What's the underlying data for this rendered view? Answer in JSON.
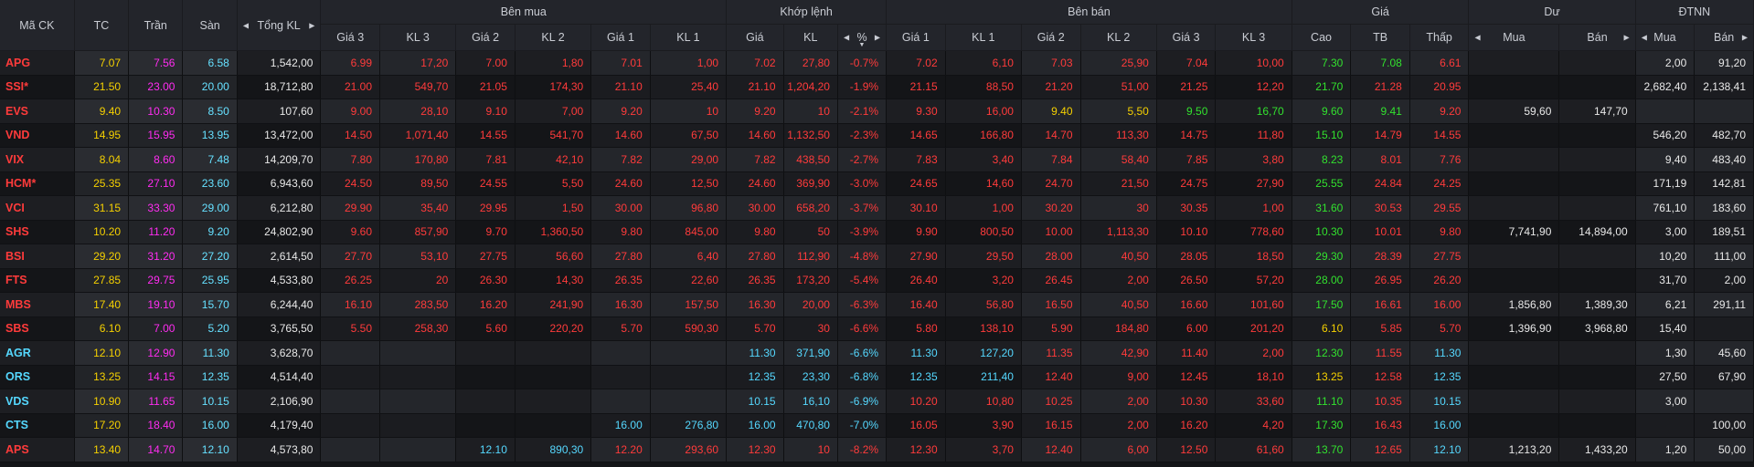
{
  "colors": {
    "down": "#ff3b3b",
    "ref": "#f5d000",
    "ceil": "#ff2cf1",
    "floor": "#55d8ff",
    "up": "#32e12e",
    "neutral": "#e8e8e8"
  },
  "headers": {
    "ma_ck": "Mã CK",
    "tc": "TC",
    "tran": "Trần",
    "san": "Sàn",
    "tong_kl": "Tổng KL",
    "ben_mua": "Bên mua",
    "khop_lenh": "Khớp lệnh",
    "ben_ban": "Bên bán",
    "gia": "Giá",
    "du": "Dư",
    "dtnn": "ĐTNN",
    "gia3": "Giá 3",
    "kl3": "KL 3",
    "gia2": "Giá 2",
    "kl2": "KL 2",
    "gia1": "Giá 1",
    "kl1": "KL 1",
    "kl_gia": "Giá",
    "kl_kl": "KL",
    "kl_pct": "%",
    "cao": "Cao",
    "tb": "TB",
    "thap": "Thấp",
    "mua": "Mua",
    "ban": "Bán"
  },
  "rows": [
    {
      "sym": "APG",
      "tc": "7.07",
      "tran": "7.56",
      "san": "6.58",
      "tkl": "1,542,00",
      "bg3": "6.99",
      "bk3": "17,20",
      "bg2": "7.00",
      "bk2": "1,80",
      "bg1": "7.01",
      "bk1": "1,00",
      "mg": "7.02",
      "mk": "27,80",
      "mp": "-0.7%",
      "sg1": "7.02",
      "sk1": "6,10",
      "sg2": "7.03",
      "sk2": "25,90",
      "sg3": "7.04",
      "sk3": "10,00",
      "cao": "7.30",
      "tb": "7.08",
      "thap": "6.61",
      "dm": "",
      "db": "",
      "nm": "2,00",
      "nb": "91,20",
      "c": {
        "sym": "cr",
        "bg3": "cr",
        "bk3": "cr",
        "bg2": "cr",
        "bk2": "cr",
        "bg1": "cr",
        "bk1": "cr",
        "mg": "cr",
        "mk": "cr",
        "mp": "cr",
        "sg1": "cr",
        "sk1": "cr",
        "sg2": "cr",
        "sk2": "cr",
        "sg3": "cr",
        "sk3": "cr",
        "cao": "cg",
        "tb": "cg",
        "thap": "cr"
      }
    },
    {
      "sym": "SSI*",
      "tc": "21.50",
      "tran": "23.00",
      "san": "20.00",
      "tkl": "18,712,80",
      "bg3": "21.00",
      "bk3": "549,70",
      "bg2": "21.05",
      "bk2": "174,30",
      "bg1": "21.10",
      "bk1": "25,40",
      "mg": "21.10",
      "mk": "1,204,20",
      "mp": "-1.9%",
      "sg1": "21.15",
      "sk1": "88,50",
      "sg2": "21.20",
      "sk2": "51,00",
      "sg3": "21.25",
      "sk3": "12,20",
      "cao": "21.70",
      "tb": "21.28",
      "thap": "20.95",
      "dm": "",
      "db": "",
      "nm": "2,682,40",
      "nb": "2,138,41",
      "c": {
        "sym": "cr",
        "bg3": "cr",
        "bk3": "cr",
        "bg2": "cr",
        "bk2": "cr",
        "bg1": "cr",
        "bk1": "cr",
        "mg": "cr",
        "mk": "cr",
        "mp": "cr",
        "sg1": "cr",
        "sk1": "cr",
        "sg2": "cr",
        "sk2": "cr",
        "sg3": "cr",
        "sk3": "cr",
        "cao": "cg",
        "tb": "cr",
        "thap": "cr"
      }
    },
    {
      "sym": "EVS",
      "tc": "9.40",
      "tran": "10.30",
      "san": "8.50",
      "tkl": "107,60",
      "bg3": "9.00",
      "bk3": "28,10",
      "bg2": "9.10",
      "bk2": "7,00",
      "bg1": "9.20",
      "bk1": "10",
      "mg": "9.20",
      "mk": "10",
      "mp": "-2.1%",
      "sg1": "9.30",
      "sk1": "16,00",
      "sg2": "9.40",
      "sk2": "5,50",
      "sg3": "9.50",
      "sk3": "16,70",
      "cao": "9.60",
      "tb": "9.41",
      "thap": "9.20",
      "dm": "59,60",
      "db": "147,70",
      "nm": "",
      "nb": "",
      "c": {
        "sym": "cr",
        "bg3": "cr",
        "bk3": "cr",
        "bg2": "cr",
        "bk2": "cr",
        "bg1": "cr",
        "bk1": "cr",
        "mg": "cr",
        "mk": "cr",
        "mp": "cr",
        "sg1": "cr",
        "sk1": "cr",
        "sg2": "cy",
        "sk2": "cy",
        "sg3": "cg",
        "sk3": "cg",
        "cao": "cg",
        "tb": "cg",
        "thap": "cr"
      }
    },
    {
      "sym": "VND",
      "tc": "14.95",
      "tran": "15.95",
      "san": "13.95",
      "tkl": "13,472,00",
      "bg3": "14.50",
      "bk3": "1,071,40",
      "bg2": "14.55",
      "bk2": "541,70",
      "bg1": "14.60",
      "bk1": "67,50",
      "mg": "14.60",
      "mk": "1,132,50",
      "mp": "-2.3%",
      "sg1": "14.65",
      "sk1": "166,80",
      "sg2": "14.70",
      "sk2": "113,30",
      "sg3": "14.75",
      "sk3": "11,80",
      "cao": "15.10",
      "tb": "14.79",
      "thap": "14.55",
      "dm": "",
      "db": "",
      "nm": "546,20",
      "nb": "482,70",
      "c": {
        "sym": "cr",
        "bg3": "cr",
        "bk3": "cr",
        "bg2": "cr",
        "bk2": "cr",
        "bg1": "cr",
        "bk1": "cr",
        "mg": "cr",
        "mk": "cr",
        "mp": "cr",
        "sg1": "cr",
        "sk1": "cr",
        "sg2": "cr",
        "sk2": "cr",
        "sg3": "cr",
        "sk3": "cr",
        "cao": "cg",
        "tb": "cr",
        "thap": "cr"
      }
    },
    {
      "sym": "VIX",
      "tc": "8.04",
      "tran": "8.60",
      "san": "7.48",
      "tkl": "14,209,70",
      "bg3": "7.80",
      "bk3": "170,80",
      "bg2": "7.81",
      "bk2": "42,10",
      "bg1": "7.82",
      "bk1": "29,00",
      "mg": "7.82",
      "mk": "438,50",
      "mp": "-2.7%",
      "sg1": "7.83",
      "sk1": "3,40",
      "sg2": "7.84",
      "sk2": "58,40",
      "sg3": "7.85",
      "sk3": "3,80",
      "cao": "8.23",
      "tb": "8.01",
      "thap": "7.76",
      "dm": "",
      "db": "",
      "nm": "9,40",
      "nb": "483,40",
      "c": {
        "sym": "cr",
        "bg3": "cr",
        "bk3": "cr",
        "bg2": "cr",
        "bk2": "cr",
        "bg1": "cr",
        "bk1": "cr",
        "mg": "cr",
        "mk": "cr",
        "mp": "cr",
        "sg1": "cr",
        "sk1": "cr",
        "sg2": "cr",
        "sk2": "cr",
        "sg3": "cr",
        "sk3": "cr",
        "cao": "cg",
        "tb": "cr",
        "thap": "cr"
      }
    },
    {
      "sym": "HCM*",
      "tc": "25.35",
      "tran": "27.10",
      "san": "23.60",
      "tkl": "6,943,60",
      "bg3": "24.50",
      "bk3": "89,50",
      "bg2": "24.55",
      "bk2": "5,50",
      "bg1": "24.60",
      "bk1": "12,50",
      "mg": "24.60",
      "mk": "369,90",
      "mp": "-3.0%",
      "sg1": "24.65",
      "sk1": "14,60",
      "sg2": "24.70",
      "sk2": "21,50",
      "sg3": "24.75",
      "sk3": "27,90",
      "cao": "25.55",
      "tb": "24.84",
      "thap": "24.25",
      "dm": "",
      "db": "",
      "nm": "171,19",
      "nb": "142,81",
      "c": {
        "sym": "cr",
        "bg3": "cr",
        "bk3": "cr",
        "bg2": "cr",
        "bk2": "cr",
        "bg1": "cr",
        "bk1": "cr",
        "mg": "cr",
        "mk": "cr",
        "mp": "cr",
        "sg1": "cr",
        "sk1": "cr",
        "sg2": "cr",
        "sk2": "cr",
        "sg3": "cr",
        "sk3": "cr",
        "cao": "cg",
        "tb": "cr",
        "thap": "cr"
      }
    },
    {
      "sym": "VCI",
      "tc": "31.15",
      "tran": "33.30",
      "san": "29.00",
      "tkl": "6,212,80",
      "bg3": "29.90",
      "bk3": "35,40",
      "bg2": "29.95",
      "bk2": "1,50",
      "bg1": "30.00",
      "bk1": "96,80",
      "mg": "30.00",
      "mk": "658,20",
      "mp": "-3.7%",
      "sg1": "30.10",
      "sk1": "1,00",
      "sg2": "30.20",
      "sk2": "30",
      "sg3": "30.35",
      "sk3": "1,00",
      "cao": "31.60",
      "tb": "30.53",
      "thap": "29.55",
      "dm": "",
      "db": "",
      "nm": "761,10",
      "nb": "183,60",
      "c": {
        "sym": "cr",
        "bg3": "cr",
        "bk3": "cr",
        "bg2": "cr",
        "bk2": "cr",
        "bg1": "cr",
        "bk1": "cr",
        "mg": "cr",
        "mk": "cr",
        "mp": "cr",
        "sg1": "cr",
        "sk1": "cr",
        "sg2": "cr",
        "sk2": "cr",
        "sg3": "cr",
        "sk3": "cr",
        "cao": "cg",
        "tb": "cr",
        "thap": "cr"
      }
    },
    {
      "sym": "SHS",
      "tc": "10.20",
      "tran": "11.20",
      "san": "9.20",
      "tkl": "24,802,90",
      "bg3": "9.60",
      "bk3": "857,90",
      "bg2": "9.70",
      "bk2": "1,360,50",
      "bg1": "9.80",
      "bk1": "845,00",
      "mg": "9.80",
      "mk": "50",
      "mp": "-3.9%",
      "sg1": "9.90",
      "sk1": "800,50",
      "sg2": "10.00",
      "sk2": "1,113,30",
      "sg3": "10.10",
      "sk3": "778,60",
      "cao": "10.30",
      "tb": "10.01",
      "thap": "9.80",
      "dm": "7,741,90",
      "db": "14,894,00",
      "nm": "3,00",
      "nb": "189,51",
      "c": {
        "sym": "cr",
        "bg3": "cr",
        "bk3": "cr",
        "bg2": "cr",
        "bk2": "cr",
        "bg1": "cr",
        "bk1": "cr",
        "mg": "cr",
        "mk": "cr",
        "mp": "cr",
        "sg1": "cr",
        "sk1": "cr",
        "sg2": "cr",
        "sk2": "cr",
        "sg3": "cr",
        "sk3": "cr",
        "cao": "cg",
        "tb": "cr",
        "thap": "cr"
      }
    },
    {
      "sym": "BSI",
      "tc": "29.20",
      "tran": "31.20",
      "san": "27.20",
      "tkl": "2,614,50",
      "bg3": "27.70",
      "bk3": "53,10",
      "bg2": "27.75",
      "bk2": "56,60",
      "bg1": "27.80",
      "bk1": "6,40",
      "mg": "27.80",
      "mk": "112,90",
      "mp": "-4.8%",
      "sg1": "27.90",
      "sk1": "29,50",
      "sg2": "28.00",
      "sk2": "40,50",
      "sg3": "28.05",
      "sk3": "18,50",
      "cao": "29.30",
      "tb": "28.39",
      "thap": "27.75",
      "dm": "",
      "db": "",
      "nm": "10,20",
      "nb": "111,00",
      "c": {
        "sym": "cr",
        "bg3": "cr",
        "bk3": "cr",
        "bg2": "cr",
        "bk2": "cr",
        "bg1": "cr",
        "bk1": "cr",
        "mg": "cr",
        "mk": "cr",
        "mp": "cr",
        "sg1": "cr",
        "sk1": "cr",
        "sg2": "cr",
        "sk2": "cr",
        "sg3": "cr",
        "sk3": "cr",
        "cao": "cg",
        "tb": "cr",
        "thap": "cr"
      }
    },
    {
      "sym": "FTS",
      "tc": "27.85",
      "tran": "29.75",
      "san": "25.95",
      "tkl": "4,533,80",
      "bg3": "26.25",
      "bk3": "20",
      "bg2": "26.30",
      "bk2": "14,30",
      "bg1": "26.35",
      "bk1": "22,60",
      "mg": "26.35",
      "mk": "173,20",
      "mp": "-5.4%",
      "sg1": "26.40",
      "sk1": "3,20",
      "sg2": "26.45",
      "sk2": "2,00",
      "sg3": "26.50",
      "sk3": "57,20",
      "cao": "28.00",
      "tb": "26.95",
      "thap": "26.20",
      "dm": "",
      "db": "",
      "nm": "31,70",
      "nb": "2,00",
      "c": {
        "sym": "cr",
        "bg3": "cr",
        "bk3": "cr",
        "bg2": "cr",
        "bk2": "cr",
        "bg1": "cr",
        "bk1": "cr",
        "mg": "cr",
        "mk": "cr",
        "mp": "cr",
        "sg1": "cr",
        "sk1": "cr",
        "sg2": "cr",
        "sk2": "cr",
        "sg3": "cr",
        "sk3": "cr",
        "cao": "cg",
        "tb": "cr",
        "thap": "cr"
      }
    },
    {
      "sym": "MBS",
      "tc": "17.40",
      "tran": "19.10",
      "san": "15.70",
      "tkl": "6,244,40",
      "bg3": "16.10",
      "bk3": "283,50",
      "bg2": "16.20",
      "bk2": "241,90",
      "bg1": "16.30",
      "bk1": "157,50",
      "mg": "16.30",
      "mk": "20,00",
      "mp": "-6.3%",
      "sg1": "16.40",
      "sk1": "56,80",
      "sg2": "16.50",
      "sk2": "40,50",
      "sg3": "16.60",
      "sk3": "101,60",
      "cao": "17.50",
      "tb": "16.61",
      "thap": "16.00",
      "dm": "1,856,80",
      "db": "1,389,30",
      "nm": "6,21",
      "nb": "291,11",
      "c": {
        "sym": "cr",
        "bg3": "cr",
        "bk3": "cr",
        "bg2": "cr",
        "bk2": "cr",
        "bg1": "cr",
        "bk1": "cr",
        "mg": "cr",
        "mk": "cr",
        "mp": "cr",
        "sg1": "cr",
        "sk1": "cr",
        "sg2": "cr",
        "sk2": "cr",
        "sg3": "cr",
        "sk3": "cr",
        "cao": "cg",
        "tb": "cr",
        "thap": "cr"
      }
    },
    {
      "sym": "SBS",
      "tc": "6.10",
      "tran": "7.00",
      "san": "5.20",
      "tkl": "3,765,50",
      "bg3": "5.50",
      "bk3": "258,30",
      "bg2": "5.60",
      "bk2": "220,20",
      "bg1": "5.70",
      "bk1": "590,30",
      "mg": "5.70",
      "mk": "30",
      "mp": "-6.6%",
      "sg1": "5.80",
      "sk1": "138,10",
      "sg2": "5.90",
      "sk2": "184,80",
      "sg3": "6.00",
      "sk3": "201,20",
      "cao": "6.10",
      "tb": "5.85",
      "thap": "5.70",
      "dm": "1,396,90",
      "db": "3,968,80",
      "nm": "15,40",
      "nb": "",
      "c": {
        "sym": "cr",
        "bg3": "cr",
        "bk3": "cr",
        "bg2": "cr",
        "bk2": "cr",
        "bg1": "cr",
        "bk1": "cr",
        "mg": "cr",
        "mk": "cr",
        "mp": "cr",
        "sg1": "cr",
        "sk1": "cr",
        "sg2": "cr",
        "sk2": "cr",
        "sg3": "cr",
        "sk3": "cr",
        "cao": "cy",
        "tb": "cr",
        "thap": "cr"
      }
    },
    {
      "sym": "AGR",
      "tc": "12.10",
      "tran": "12.90",
      "san": "11.30",
      "tkl": "3,628,70",
      "bg3": "",
      "bk3": "",
      "bg2": "",
      "bk2": "",
      "bg1": "",
      "bk1": "",
      "mg": "11.30",
      "mk": "371,90",
      "mp": "-6.6%",
      "sg1": "11.30",
      "sk1": "127,20",
      "sg2": "11.35",
      "sk2": "42,90",
      "sg3": "11.40",
      "sk3": "2,00",
      "cao": "12.30",
      "tb": "11.55",
      "thap": "11.30",
      "dm": "",
      "db": "",
      "nm": "1,30",
      "nb": "45,60",
      "c": {
        "sym": "cc",
        "bg3": "cr",
        "bk3": "cr",
        "bg2": "cr",
        "bk2": "cr",
        "bg1": "cr",
        "bk1": "cr",
        "mg": "cc",
        "mk": "cc",
        "mp": "cc",
        "sg1": "cc",
        "sk1": "cc",
        "sg2": "cr",
        "sk2": "cr",
        "sg3": "cr",
        "sk3": "cr",
        "cao": "cg",
        "tb": "cr",
        "thap": "cc"
      }
    },
    {
      "sym": "ORS",
      "tc": "13.25",
      "tran": "14.15",
      "san": "12.35",
      "tkl": "4,514,40",
      "bg3": "",
      "bk3": "",
      "bg2": "",
      "bk2": "",
      "bg1": "",
      "bk1": "",
      "mg": "12.35",
      "mk": "23,30",
      "mp": "-6.8%",
      "sg1": "12.35",
      "sk1": "211,40",
      "sg2": "12.40",
      "sk2": "9,00",
      "sg3": "12.45",
      "sk3": "18,10",
      "cao": "13.25",
      "tb": "12.58",
      "thap": "12.35",
      "dm": "",
      "db": "",
      "nm": "27,50",
      "nb": "67,90",
      "c": {
        "sym": "cc",
        "bg3": "cr",
        "bk3": "cr",
        "bg2": "cr",
        "bk2": "cr",
        "bg1": "cr",
        "bk1": "cr",
        "mg": "cc",
        "mk": "cc",
        "mp": "cc",
        "sg1": "cc",
        "sk1": "cc",
        "sg2": "cr",
        "sk2": "cr",
        "sg3": "cr",
        "sk3": "cr",
        "cao": "cy",
        "tb": "cr",
        "thap": "cc"
      }
    },
    {
      "sym": "VDS",
      "tc": "10.90",
      "tran": "11.65",
      "san": "10.15",
      "tkl": "2,106,90",
      "bg3": "",
      "bk3": "",
      "bg2": "",
      "bk2": "",
      "bg1": "",
      "bk1": "",
      "mg": "10.15",
      "mk": "16,10",
      "mp": "-6.9%",
      "sg1": "10.20",
      "sk1": "10,80",
      "sg2": "10.25",
      "sk2": "2,00",
      "sg3": "10.30",
      "sk3": "33,60",
      "cao": "11.10",
      "tb": "10.35",
      "thap": "10.15",
      "dm": "",
      "db": "",
      "nm": "3,00",
      "nb": "",
      "c": {
        "sym": "cc",
        "bg3": "cr",
        "bk3": "cr",
        "bg2": "cr",
        "bk2": "cr",
        "bg1": "cr",
        "bk1": "cr",
        "mg": "cc",
        "mk": "cc",
        "mp": "cc",
        "sg1": "cr",
        "sk1": "cr",
        "sg2": "cr",
        "sk2": "cr",
        "sg3": "cr",
        "sk3": "cr",
        "cao": "cg",
        "tb": "cr",
        "thap": "cc"
      }
    },
    {
      "sym": "CTS",
      "tc": "17.20",
      "tran": "18.40",
      "san": "16.00",
      "tkl": "4,179,40",
      "bg3": "",
      "bk3": "",
      "bg2": "",
      "bk2": "",
      "bg1": "16.00",
      "bk1": "276,80",
      "mg": "16.00",
      "mk": "470,80",
      "mp": "-7.0%",
      "sg1": "16.05",
      "sk1": "3,90",
      "sg2": "16.15",
      "sk2": "2,00",
      "sg3": "16.20",
      "sk3": "4,20",
      "cao": "17.30",
      "tb": "16.43",
      "thap": "16.00",
      "dm": "",
      "db": "",
      "nm": "",
      "nb": "100,00",
      "c": {
        "sym": "cc",
        "bg3": "cr",
        "bk3": "cr",
        "bg2": "cr",
        "bk2": "cr",
        "bg1": "cc",
        "bk1": "cc",
        "mg": "cc",
        "mk": "cc",
        "mp": "cc",
        "sg1": "cr",
        "sk1": "cr",
        "sg2": "cr",
        "sk2": "cr",
        "sg3": "cr",
        "sk3": "cr",
        "cao": "cg",
        "tb": "cr",
        "thap": "cc"
      }
    },
    {
      "sym": "APS",
      "tc": "13.40",
      "tran": "14.70",
      "san": "12.10",
      "tkl": "4,573,80",
      "bg3": "",
      "bk3": "",
      "bg2": "12.10",
      "bk2": "890,30",
      "bg1": "12.20",
      "bk1": "293,60",
      "mg": "12.30",
      "mk": "10",
      "mp": "-8.2%",
      "sg1": "12.30",
      "sk1": "3,70",
      "sg2": "12.40",
      "sk2": "6,00",
      "sg3": "12.50",
      "sk3": "61,60",
      "cao": "13.70",
      "tb": "12.65",
      "thap": "12.10",
      "dm": "1,213,20",
      "db": "1,433,20",
      "nm": "1,20",
      "nb": "50,00",
      "c": {
        "sym": "cr",
        "bg3": "cr",
        "bk3": "cr",
        "bg2": "cc",
        "bk2": "cc",
        "bg1": "cr",
        "bk1": "cr",
        "mg": "cr",
        "mk": "cr",
        "mp": "cr",
        "sg1": "cr",
        "sk1": "cr",
        "sg2": "cr",
        "sk2": "cr",
        "sg3": "cr",
        "sk3": "cr",
        "cao": "cg",
        "tb": "cr",
        "thap": "cc"
      }
    }
  ]
}
